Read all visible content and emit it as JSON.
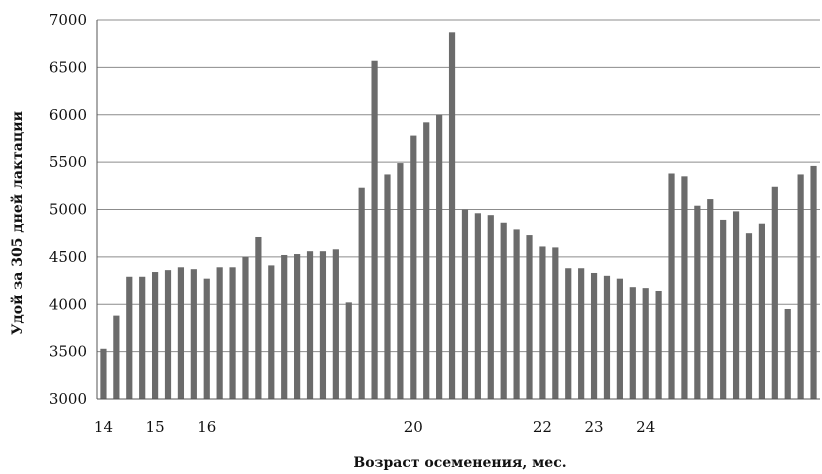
{
  "chart_data": {
    "type": "bar",
    "xlabel": "Возраст осеменения, мес.",
    "ylabel": "Удой за 305 дней лактации",
    "ylim": [
      3000,
      7000
    ],
    "yticks": [
      3000,
      3500,
      4000,
      4500,
      5000,
      5500,
      6000,
      6500,
      7000
    ],
    "grid": true,
    "bar_color": "#6b6b6b",
    "x_tick_labels": [
      {
        "bar_index": 0,
        "label": "14"
      },
      {
        "bar_index": 4,
        "label": "15"
      },
      {
        "bar_index": 8,
        "label": "16"
      },
      {
        "bar_index": 24,
        "label": "20"
      },
      {
        "bar_index": 34,
        "label": "22"
      },
      {
        "bar_index": 38,
        "label": "23"
      },
      {
        "bar_index": 42,
        "label": "24"
      }
    ],
    "values": [
      3530,
      3880,
      4290,
      4290,
      4340,
      4360,
      4390,
      4370,
      4270,
      4390,
      4390,
      4500,
      4710,
      4410,
      4520,
      4530,
      4560,
      4560,
      4580,
      4020,
      5230,
      6570,
      5370,
      5490,
      5780,
      5920,
      6000,
      6870,
      5000,
      4960,
      4940,
      4860,
      4790,
      4730,
      4610,
      4600,
      4380,
      4380,
      4330,
      4300,
      4270,
      4180,
      4170,
      4140,
      5380,
      5350,
      5040,
      5110,
      4890,
      4980,
      4750,
      4850,
      5240,
      3950,
      5370,
      5460
    ]
  }
}
